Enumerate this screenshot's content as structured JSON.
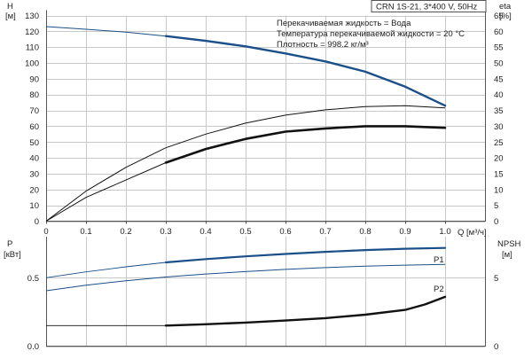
{
  "header": {
    "model": "CRN 1S-21, 3*400 V, 50Hz",
    "fluid": "Перекачиваемая жидкость = Вода",
    "temperature": "Температура перекачиваемой жидкости = 20 °C",
    "density": "Плотность = 998.2 кг/м³"
  },
  "colors": {
    "head": "#1b4f8a",
    "p1": "#1b4f8a",
    "p2": "#1b4f8a",
    "efficiency": "#111111",
    "npsh": "#111111",
    "grid": "#c8c8c8"
  },
  "chart_data": [
    {
      "type": "line",
      "name": "performance",
      "axes": {
        "x": {
          "label": "Q [м³/ч]",
          "range": [
            0,
            1.1
          ],
          "ticks": [
            "0",
            "0.1",
            "0.2",
            "0.3",
            "0.4",
            "0.5",
            "0.6",
            "0.7",
            "0.8",
            "0.9",
            "1.0"
          ],
          "tick_values": [
            0,
            0.1,
            0.2,
            0.3,
            0.4,
            0.5,
            0.6,
            0.7,
            0.8,
            0.9,
            1.0
          ]
        },
        "y_left": {
          "label_top": "H",
          "label_unit": "[м]",
          "range": [
            0,
            130
          ],
          "ticks": [
            "0",
            "10",
            "20",
            "30",
            "40",
            "50",
            "60",
            "70",
            "80",
            "90",
            "100",
            "110",
            "120",
            "130"
          ],
          "tick_values": [
            0,
            10,
            20,
            30,
            40,
            50,
            60,
            70,
            80,
            90,
            100,
            110,
            120,
            130
          ]
        },
        "y_right": {
          "label_top": "eta",
          "label_unit": "[%]",
          "range": [
            0,
            65
          ],
          "ticks": [
            "0",
            "5",
            "10",
            "15",
            "20",
            "25",
            "30",
            "35",
            "40",
            "45",
            "50",
            "55",
            "60",
            "65"
          ],
          "tick_values": [
            0,
            5,
            10,
            15,
            20,
            25,
            30,
            35,
            40,
            45,
            50,
            55,
            60,
            65
          ]
        }
      },
      "grid": true,
      "series": [
        {
          "key": "head",
          "axis": "left",
          "operating_range": [
            0.3,
            1.0
          ],
          "x": [
            0,
            0.1,
            0.2,
            0.3,
            0.4,
            0.5,
            0.6,
            0.7,
            0.8,
            0.9,
            1.0
          ],
          "y": [
            123,
            121.3,
            119.5,
            117,
            114,
            110.5,
            106,
            101,
            94.5,
            85,
            73
          ]
        },
        {
          "key": "total-efficiency",
          "axis": "right",
          "operating_range": [
            0.3,
            1.0
          ],
          "x": [
            0,
            0.1,
            0.2,
            0.3,
            0.4,
            0.5,
            0.6,
            0.7,
            0.8,
            0.9,
            1.0
          ],
          "y": [
            0,
            7.5,
            13,
            18.5,
            22.8,
            26,
            28.3,
            29.3,
            30,
            30,
            29.5
          ]
        },
        {
          "key": "pump-efficiency",
          "axis": "right",
          "operating_range": [
            0,
            1.0
          ],
          "x": [
            0,
            0.1,
            0.2,
            0.3,
            0.4,
            0.5,
            0.6,
            0.7,
            0.8,
            0.9,
            1.0
          ],
          "y": [
            0,
            9.5,
            17,
            23.2,
            27.5,
            31,
            33.5,
            35.2,
            36.2,
            36.5,
            35.8
          ]
        }
      ]
    },
    {
      "type": "line",
      "name": "power-npsh",
      "axes": {
        "y_left": {
          "label_top": "P",
          "label_unit": "[кВт]",
          "range": [
            0,
            0.8
          ],
          "ticks": [
            "0.0",
            "0.5"
          ],
          "tick_values": [
            0,
            0.5
          ]
        },
        "y_right": {
          "label_top": "NPSH",
          "label_unit": "[м]",
          "range": [
            0,
            8
          ],
          "ticks": [
            "0",
            "5"
          ],
          "tick_values": [
            0,
            5
          ]
        }
      },
      "grid": true,
      "series": [
        {
          "key": "P1",
          "name": "P1",
          "axis": "left",
          "operating_range": [
            0.3,
            1.0
          ],
          "x": [
            0,
            0.1,
            0.2,
            0.3,
            0.4,
            0.5,
            0.6,
            0.7,
            0.8,
            0.9,
            1.0
          ],
          "y": [
            0.5,
            0.543,
            0.58,
            0.612,
            0.636,
            0.656,
            0.674,
            0.689,
            0.702,
            0.712,
            0.718
          ]
        },
        {
          "key": "P2",
          "name": "P2",
          "axis": "left",
          "operating_range": [
            0,
            1.0
          ],
          "x": [
            0,
            0.1,
            0.2,
            0.3,
            0.4,
            0.5,
            0.6,
            0.7,
            0.8,
            0.9,
            1.0
          ],
          "y": [
            0.405,
            0.445,
            0.478,
            0.505,
            0.527,
            0.545,
            0.561,
            0.574,
            0.584,
            0.592,
            0.597
          ]
        },
        {
          "key": "NPSH",
          "axis": "right",
          "operating_range": [
            0.3,
            1.0
          ],
          "x": [
            0,
            0.1,
            0.2,
            0.3,
            0.4,
            0.5,
            0.6,
            0.7,
            0.8,
            0.9,
            0.95,
            1.0
          ],
          "y": [
            1.5,
            1.5,
            1.5,
            1.5,
            1.6,
            1.72,
            1.87,
            2.05,
            2.3,
            2.65,
            3.05,
            3.6
          ]
        }
      ]
    }
  ]
}
